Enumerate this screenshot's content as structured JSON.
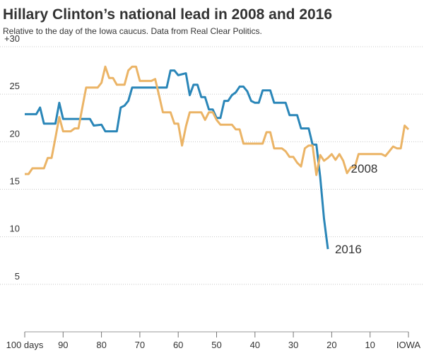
{
  "chart_data": {
    "type": "line",
    "title": "Hillary Clinton’s national lead in 2008 and 2016",
    "subtitle": "Relative to the day of the Iowa caucus. Data from Real Clear Politics.",
    "xlim": [
      100,
      0
    ],
    "ylim": [
      0,
      30
    ],
    "xticks": [
      {
        "value": 100,
        "label": "100 days"
      },
      90,
      80,
      70,
      60,
      50,
      40,
      30,
      20,
      10,
      {
        "value": 0,
        "label": "IOWA"
      }
    ],
    "yticks": [
      {
        "value": 30,
        "label": "+30"
      },
      25,
      20,
      15,
      10,
      5
    ],
    "grid": true,
    "series": [
      {
        "name": "2016",
        "color": "#2a86b8",
        "x": [
          100,
          97,
          96,
          95,
          92,
          91,
          90,
          83,
          82,
          80,
          79,
          76,
          75,
          74,
          73,
          72,
          63,
          62,
          61,
          60,
          58,
          57,
          56,
          55,
          54,
          53,
          52,
          51,
          50,
          49,
          48,
          47,
          46,
          45,
          44,
          43,
          42,
          41,
          40,
          39,
          38,
          36,
          35,
          32,
          31,
          29,
          28,
          26,
          25,
          24,
          23,
          22,
          21
        ],
        "values": [
          22.9,
          22.9,
          23.6,
          21.9,
          21.9,
          24.1,
          22.4,
          22.4,
          21.7,
          21.8,
          21.1,
          21.1,
          23.6,
          23.8,
          24.3,
          25.7,
          25.7,
          27.5,
          27.5,
          27.0,
          27.2,
          24.9,
          26.0,
          26.0,
          24.7,
          24.7,
          23.4,
          23.4,
          22.5,
          22.5,
          24.3,
          24.3,
          24.9,
          25.2,
          25.8,
          25.8,
          25.3,
          24.3,
          24.1,
          24.1,
          25.4,
          25.4,
          24.1,
          24.1,
          22.8,
          22.8,
          21.4,
          21.4,
          19.7,
          19.7,
          16.3,
          11.9,
          8.7
        ]
      },
      {
        "name": "2008",
        "color": "#ebb466",
        "x": [
          100,
          99,
          98,
          95,
          94,
          93,
          92,
          91,
          90,
          88,
          87,
          86,
          85,
          84,
          81,
          80,
          79,
          78,
          77,
          76,
          74,
          73,
          72,
          71,
          70,
          67,
          66,
          65,
          64,
          62,
          61,
          60,
          59,
          58,
          57,
          54,
          53,
          52,
          51,
          50,
          49,
          46,
          45,
          44,
          43,
          38,
          37,
          36,
          35,
          33,
          32,
          31,
          30,
          29,
          28,
          27,
          26,
          25,
          24,
          23,
          22,
          21,
          20,
          19,
          18,
          17,
          16,
          15,
          14,
          13,
          7,
          6,
          5,
          4,
          3,
          2,
          1,
          0
        ],
        "values": [
          16.6,
          16.6,
          17.2,
          17.2,
          18.3,
          18.3,
          20.4,
          22.6,
          21.1,
          21.1,
          21.4,
          21.4,
          23.6,
          25.7,
          25.7,
          26.2,
          27.9,
          26.7,
          26.7,
          26.0,
          26.0,
          27.5,
          27.9,
          27.9,
          26.4,
          26.4,
          26.6,
          24.9,
          23.1,
          23.1,
          21.9,
          21.9,
          19.6,
          21.6,
          23.1,
          23.1,
          22.3,
          23.1,
          23.1,
          22.3,
          21.8,
          21.8,
          21.3,
          21.3,
          19.8,
          19.8,
          21.0,
          21.0,
          19.3,
          19.3,
          19.0,
          18.4,
          18.4,
          17.8,
          17.4,
          19.3,
          19.6,
          19.6,
          16.5,
          18.6,
          18.0,
          18.3,
          18.7,
          18.1,
          18.7,
          18.0,
          16.7,
          17.3,
          17.3,
          18.7,
          18.7,
          18.5,
          19.0,
          19.5,
          19.3,
          19.3,
          21.7,
          21.3
        ]
      }
    ]
  }
}
